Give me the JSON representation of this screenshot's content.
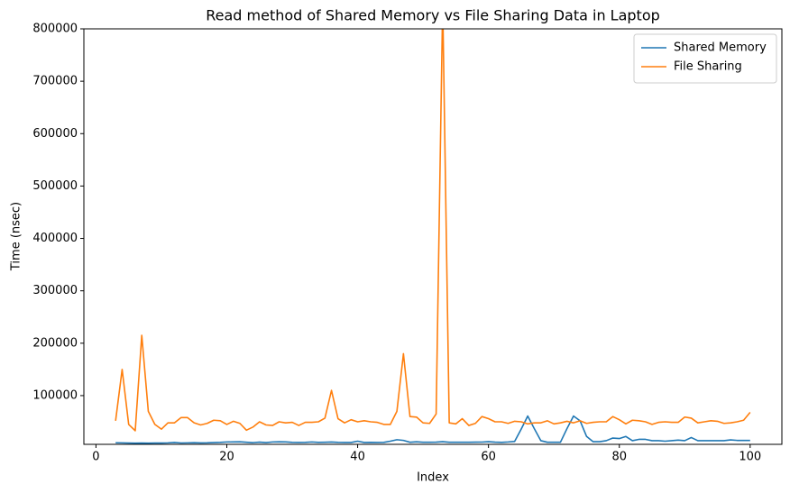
{
  "chart_data": {
    "type": "line",
    "title": "Read method of Shared Memory vs File Sharing Data in Laptop",
    "x_label": "Index",
    "y_label": "Time (nsec)",
    "x": [
      3,
      4,
      5,
      6,
      7,
      8,
      9,
      10,
      11,
      12,
      13,
      14,
      15,
      16,
      17,
      18,
      19,
      20,
      21,
      22,
      23,
      24,
      25,
      26,
      27,
      28,
      29,
      30,
      31,
      32,
      33,
      34,
      35,
      36,
      37,
      38,
      39,
      40,
      41,
      42,
      43,
      44,
      45,
      46,
      47,
      48,
      49,
      50,
      51,
      52,
      53,
      54,
      55,
      56,
      57,
      58,
      59,
      60,
      61,
      62,
      63,
      64,
      65,
      66,
      67,
      68,
      69,
      70,
      71,
      72,
      73,
      74,
      75,
      76,
      77,
      78,
      79,
      80,
      81,
      82,
      83,
      84,
      85,
      86,
      87,
      88,
      89,
      90,
      91,
      92,
      93,
      94,
      95,
      96,
      97,
      98,
      99,
      100
    ],
    "series": [
      {
        "name": "Shared Memory",
        "color": "#1f77b4",
        "values": [
          10000,
          9800,
          9500,
          9200,
          9400,
          9300,
          9400,
          9500,
          9800,
          10500,
          9600,
          9800,
          10200,
          9700,
          9900,
          10400,
          10800,
          11500,
          11600,
          11800,
          11000,
          10200,
          11200,
          10300,
          11500,
          11800,
          11600,
          10800,
          10600,
          10800,
          11500,
          10700,
          11000,
          11400,
          10700,
          10500,
          10600,
          13000,
          10500,
          10800,
          10500,
          10800,
          13000,
          15800,
          14500,
          11000,
          11800,
          11000,
          11000,
          11200,
          12000,
          11000,
          11000,
          11000,
          11000,
          11200,
          11300,
          12000,
          11200,
          10800,
          11500,
          12500,
          36000,
          61000,
          37000,
          14000,
          11000,
          11000,
          11000,
          37000,
          61000,
          52000,
          22000,
          12000,
          12000,
          14000,
          19000,
          18000,
          22000,
          14000,
          16500,
          16500,
          14000,
          14000,
          13000,
          14000,
          15000,
          14000,
          20000,
          14000,
          14000,
          14000,
          14000,
          14000,
          15500,
          14500,
          14500,
          14500
        ]
      },
      {
        "name": "File Sharing",
        "color": "#ff7f0e",
        "values": [
          52000,
          150000,
          45000,
          33000,
          215000,
          70000,
          45000,
          36000,
          48000,
          48000,
          58000,
          58000,
          48000,
          44000,
          47000,
          53000,
          52000,
          45000,
          51000,
          47000,
          34000,
          40000,
          50000,
          44000,
          43000,
          50000,
          48000,
          49000,
          43000,
          49000,
          49000,
          50000,
          57000,
          110000,
          56000,
          48000,
          54000,
          50000,
          52000,
          50000,
          49000,
          45000,
          45000,
          70000,
          180000,
          60000,
          59000,
          48000,
          47000,
          65000,
          850000,
          48000,
          46000,
          56000,
          43000,
          47000,
          60000,
          56000,
          50000,
          50000,
          47000,
          51000,
          50000,
          46000,
          48000,
          48000,
          52000,
          46000,
          48000,
          51000,
          48000,
          52000,
          47000,
          49000,
          50000,
          50000,
          60000,
          54000,
          46000,
          53000,
          52000,
          50000,
          45000,
          49000,
          50000,
          49000,
          49000,
          59000,
          57000,
          48000,
          50000,
          52000,
          51000,
          47000,
          48000,
          50000,
          53000,
          68000
        ]
      }
    ],
    "xlim": [
      -1.85,
      104.85
    ],
    "xticks": [
      0,
      20,
      40,
      60,
      80,
      100
    ],
    "ylim": [
      7000,
      800000
    ],
    "yticks": [
      100000,
      200000,
      300000,
      400000,
      500000,
      600000,
      700000,
      800000
    ],
    "legend": "upper right"
  }
}
